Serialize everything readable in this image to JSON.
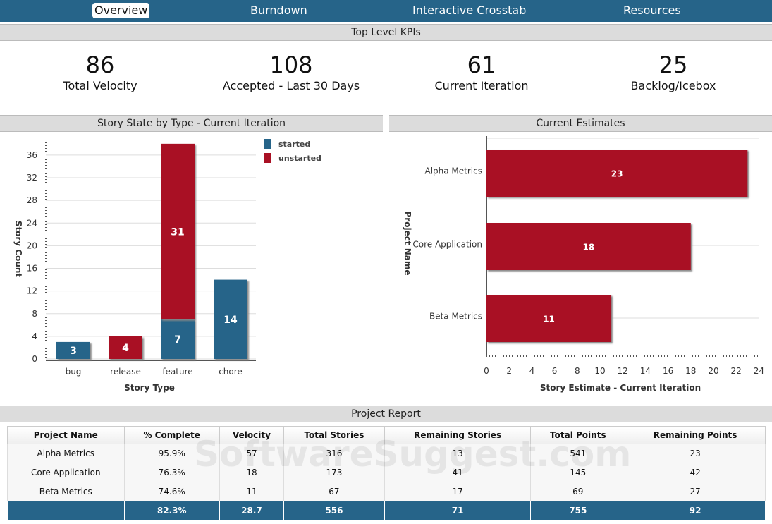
{
  "nav": {
    "items": [
      {
        "label": "Overview",
        "active": true
      },
      {
        "label": "Burndown"
      },
      {
        "label": "Interactive Crosstab"
      },
      {
        "label": "Resources"
      }
    ]
  },
  "kpi_section": {
    "title": "Top Level KPIs",
    "items": [
      {
        "value": "86",
        "label": "Total Velocity"
      },
      {
        "value": "108",
        "label": "Accepted - Last 30 Days"
      },
      {
        "value": "61",
        "label": "Current Iteration"
      },
      {
        "value": "25",
        "label": "Backlog/Icebox"
      }
    ]
  },
  "colors": {
    "nav": "#266489",
    "started": "#266489",
    "unstarted": "#a91024"
  },
  "chart_data": [
    {
      "type": "bar",
      "stacked": true,
      "title": "Story State by Type - Current Iteration",
      "xlabel": "Story Type",
      "ylabel": "Story Count",
      "categories": [
        "bug",
        "release",
        "feature",
        "chore"
      ],
      "series": [
        {
          "name": "started",
          "values": [
            3,
            0,
            7,
            14
          ]
        },
        {
          "name": "unstarted",
          "values": [
            0,
            4,
            31,
            0
          ]
        }
      ],
      "ylim": [
        0,
        38
      ],
      "yticks": [
        0,
        4,
        8,
        12,
        16,
        20,
        24,
        28,
        32,
        36
      ],
      "grid": true,
      "legend": "top-right"
    },
    {
      "type": "bar",
      "orientation": "horizontal",
      "title": "Current Estimates",
      "xlabel": "Story Estimate - Current Iteration",
      "ylabel": "Project Name",
      "categories": [
        "Alpha Metrics",
        "Core Application",
        "Beta Metrics"
      ],
      "values": [
        23,
        18,
        11
      ],
      "xlim": [
        0,
        24
      ],
      "xticks": [
        0,
        2,
        4,
        6,
        8,
        10,
        12,
        14,
        16,
        18,
        20,
        22,
        24
      ],
      "grid": true
    }
  ],
  "report": {
    "title": "Project Report",
    "watermark": "SoftwareSuggest.com",
    "columns": [
      "Project Name",
      "% Complete",
      "Velocity",
      "Total Stories",
      "Remaining Stories",
      "Total Points",
      "Remaining Points"
    ],
    "rows": [
      [
        "Alpha Metrics",
        "95.9%",
        "57",
        "316",
        "13",
        "541",
        "23"
      ],
      [
        "Core Application",
        "76.3%",
        "18",
        "173",
        "41",
        "145",
        "42"
      ],
      [
        "Beta Metrics",
        "74.6%",
        "11",
        "67",
        "17",
        "69",
        "27"
      ]
    ],
    "total": [
      "",
      "82.3%",
      "28.7",
      "556",
      "71",
      "755",
      "92"
    ]
  }
}
